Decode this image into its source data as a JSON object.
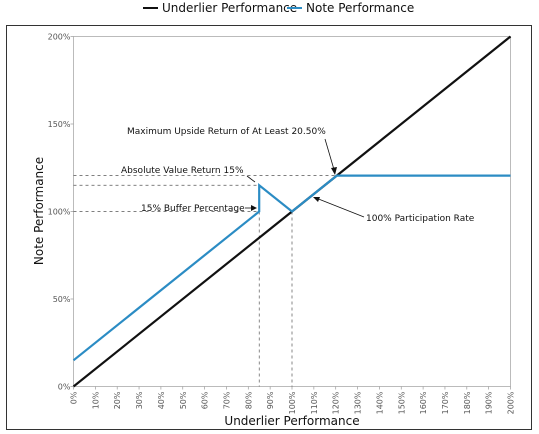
{
  "chart_data": {
    "type": "line",
    "xlabel": "Underlier Performance",
    "ylabel": "Note Performance",
    "xlim": [
      0,
      200
    ],
    "ylim": [
      0,
      200
    ],
    "x_ticks": [
      0,
      10,
      20,
      30,
      40,
      50,
      60,
      70,
      80,
      90,
      100,
      110,
      120,
      130,
      140,
      150,
      160,
      170,
      180,
      190,
      200
    ],
    "x_tick_labels": [
      "0%",
      "10%",
      "20%",
      "30%",
      "40%",
      "50%",
      "60%",
      "70%",
      "80%",
      "90%",
      "100%",
      "110%",
      "120%",
      "130%",
      "140%",
      "150%",
      "160%",
      "170%",
      "180%",
      "190%",
      "200%"
    ],
    "y_ticks": [
      0,
      50,
      100,
      150,
      200
    ],
    "y_tick_labels": [
      "0%",
      "50%",
      "100%",
      "150%",
      "200%"
    ],
    "grid": false,
    "legend_position": "top",
    "series": [
      {
        "name": "Underlier Performance",
        "color": "#111111",
        "points": [
          [
            0,
            0
          ],
          [
            200,
            200
          ]
        ]
      },
      {
        "name": "Note Performance",
        "color": "#2b8cc4",
        "points": [
          [
            0,
            15
          ],
          [
            85,
            100
          ],
          [
            85,
            115
          ],
          [
            100,
            100
          ],
          [
            120.5,
            120.5
          ],
          [
            200,
            120.5
          ]
        ]
      }
    ],
    "reference_lines": [
      {
        "from": [
          0,
          120.5
        ],
        "to": [
          120.5,
          120.5
        ]
      },
      {
        "from": [
          0,
          115
        ],
        "to": [
          85,
          115
        ]
      },
      {
        "from": [
          0,
          100
        ],
        "to": [
          85,
          100
        ]
      },
      {
        "from": [
          85,
          100
        ],
        "to": [
          85,
          0
        ]
      },
      {
        "from": [
          100,
          100
        ],
        "to": [
          100,
          0
        ]
      }
    ],
    "annotations": [
      {
        "text": "Maximum Upside Return of At Least 20.50%",
        "target": [
          120.5,
          120.5
        ]
      },
      {
        "text": "Absolute Value Return 15%",
        "target": [
          85,
          115
        ]
      },
      {
        "text": "15% Buffer Percentage",
        "target": [
          85,
          100
        ]
      },
      {
        "text": "100% Participation Rate",
        "target": [
          110,
          110
        ]
      }
    ]
  }
}
